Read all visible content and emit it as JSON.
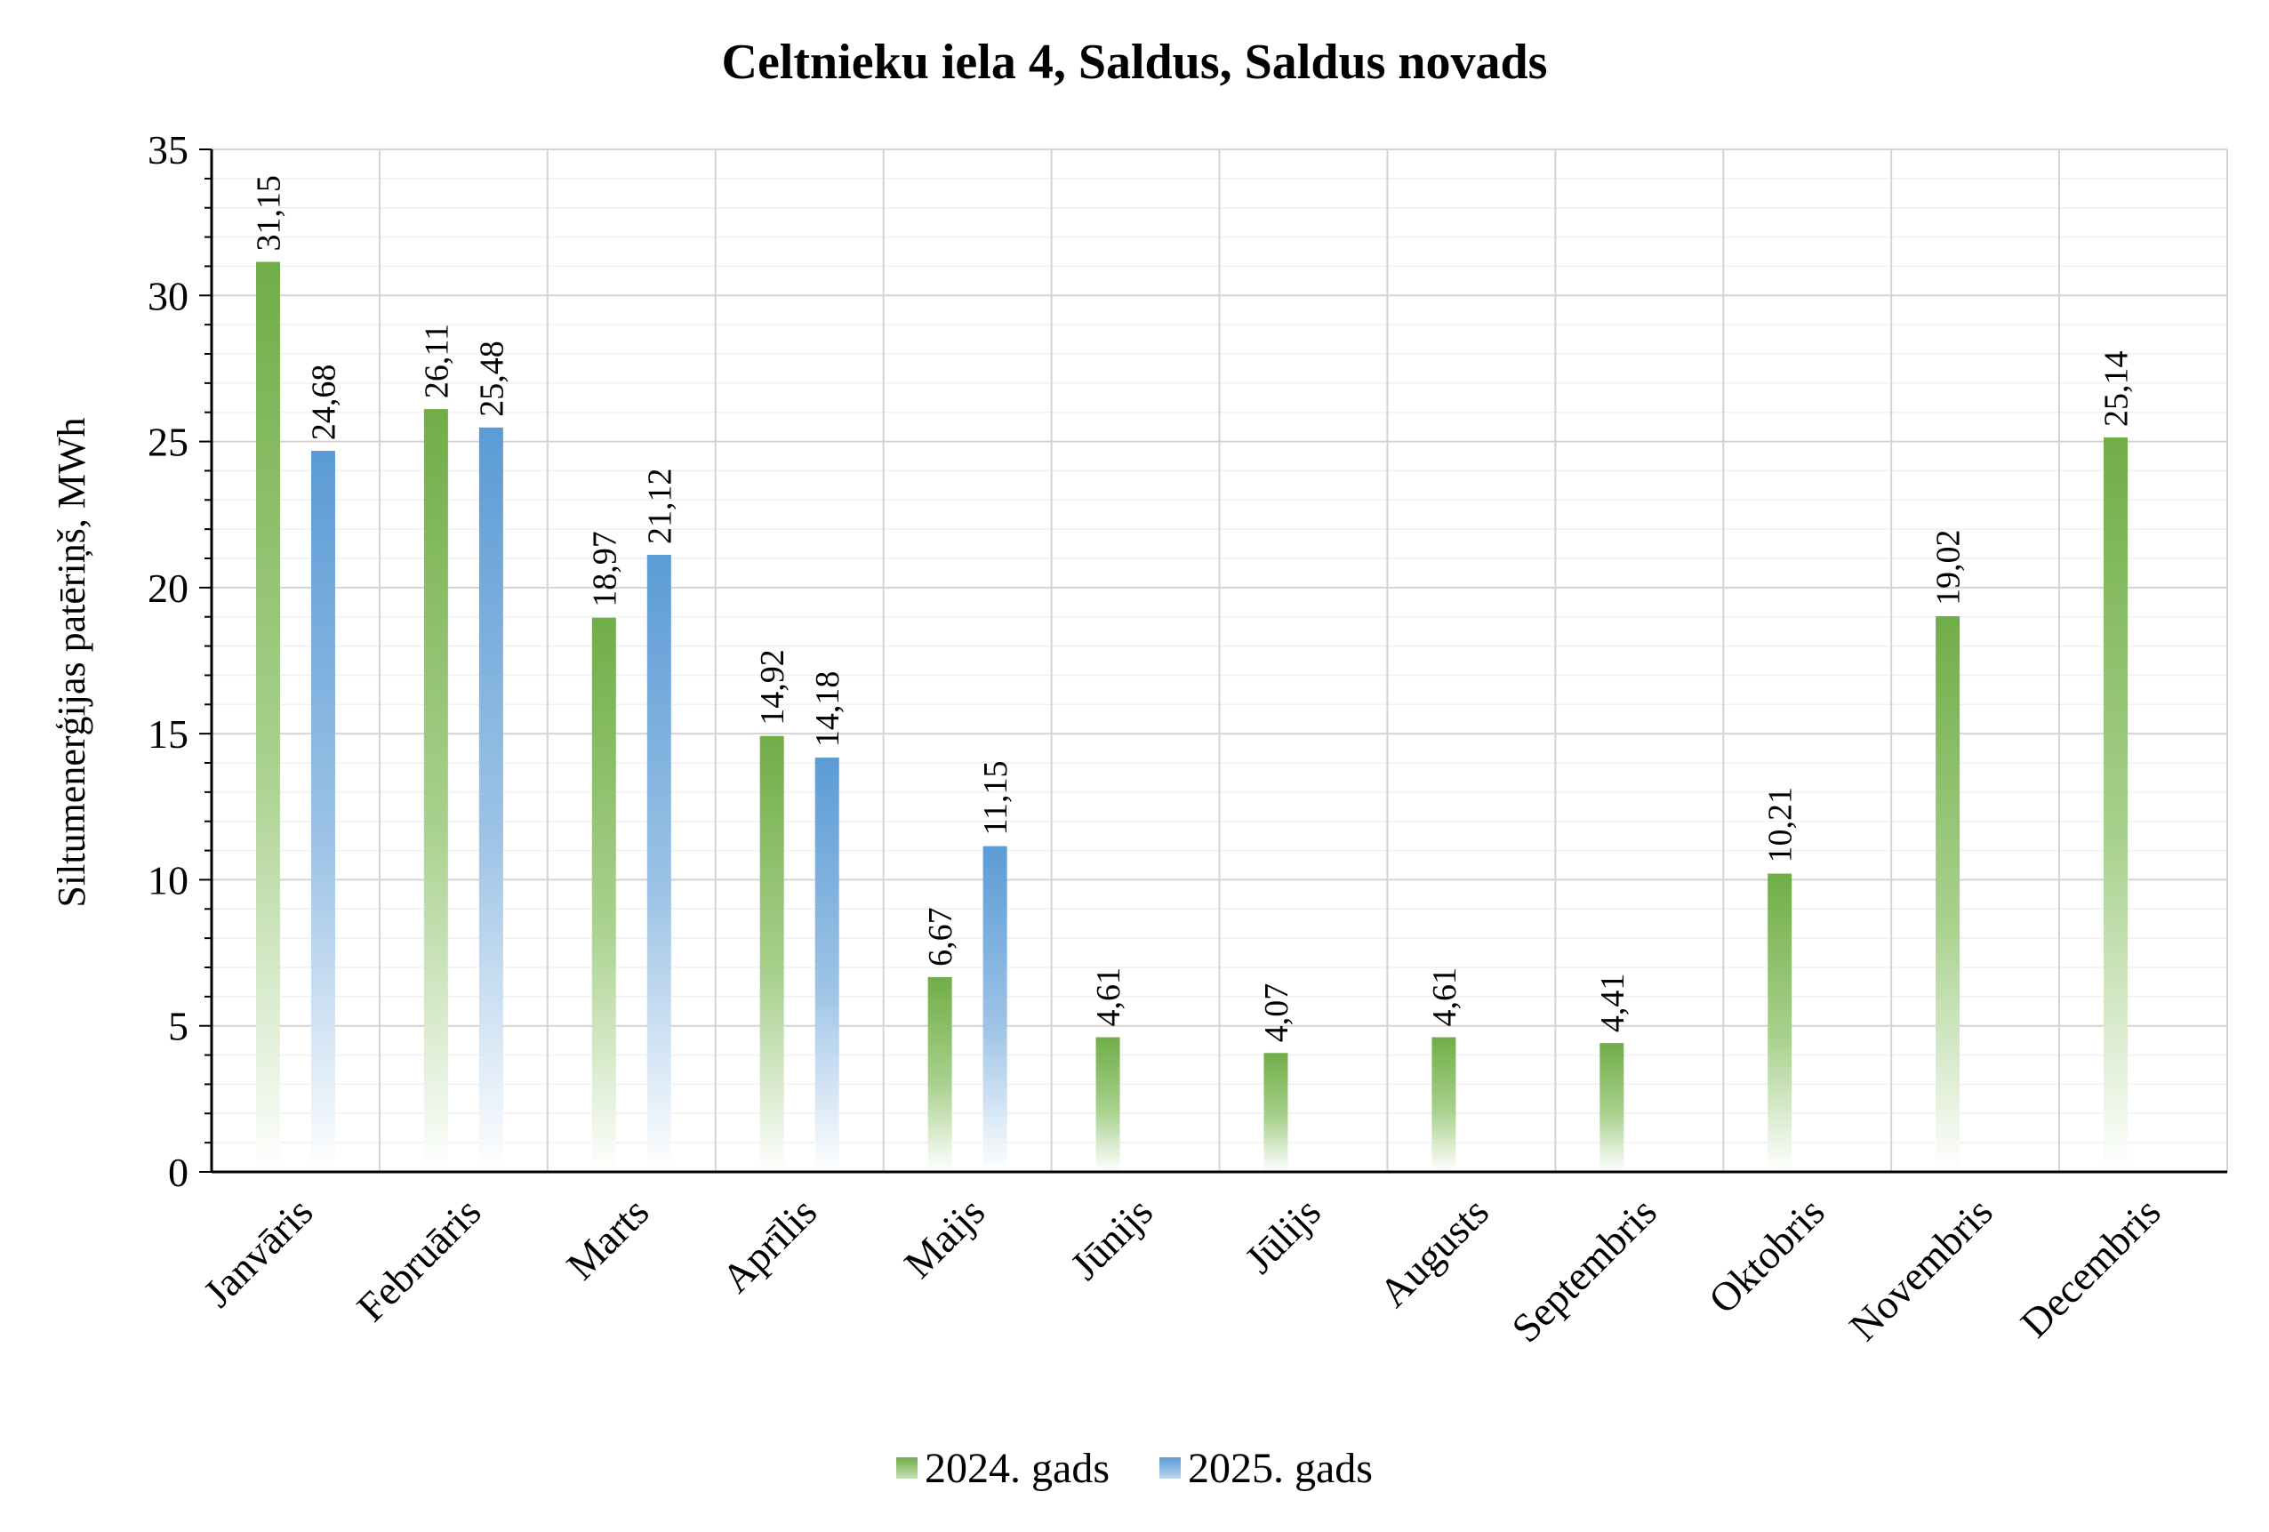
{
  "chart_data": {
    "type": "bar",
    "title": "Celtnieku iela 4, Saldus, Saldus novads",
    "ylabel": "Siltumenerģijas patēriņš, MWh",
    "xlabel": "",
    "ylim": [
      0,
      35
    ],
    "yticks": [
      0,
      5,
      10,
      15,
      20,
      25,
      30,
      35
    ],
    "grid": true,
    "legend_position": "bottom",
    "categories": [
      "Janvāris",
      "Februāris",
      "Marts",
      "Aprīlis",
      "Maijs",
      "Jūnijs",
      "Jūlijs",
      "Augusts",
      "Septembris",
      "Oktobris",
      "Novembris",
      "Decembris"
    ],
    "series": [
      {
        "name": "2024. gads",
        "color": "#70AD47",
        "values": [
          31.15,
          26.11,
          18.97,
          14.92,
          6.67,
          4.61,
          4.07,
          4.61,
          4.41,
          10.21,
          19.02,
          25.14
        ],
        "labels": [
          "31,15",
          "26,11",
          "18,97",
          "14,92",
          "6,67",
          "4,61",
          "4,07",
          "4,61",
          "4,41",
          "10,21",
          "19,02",
          "25,14"
        ]
      },
      {
        "name": "2025. gads",
        "color": "#5B9BD5",
        "values": [
          24.68,
          25.48,
          21.12,
          14.18,
          11.15,
          null,
          null,
          null,
          null,
          null,
          null,
          null
        ],
        "labels": [
          "24,68",
          "25,48",
          "21,12",
          "14,18",
          "11,15",
          "",
          "",
          "",
          "",
          "",
          "",
          ""
        ]
      }
    ]
  }
}
